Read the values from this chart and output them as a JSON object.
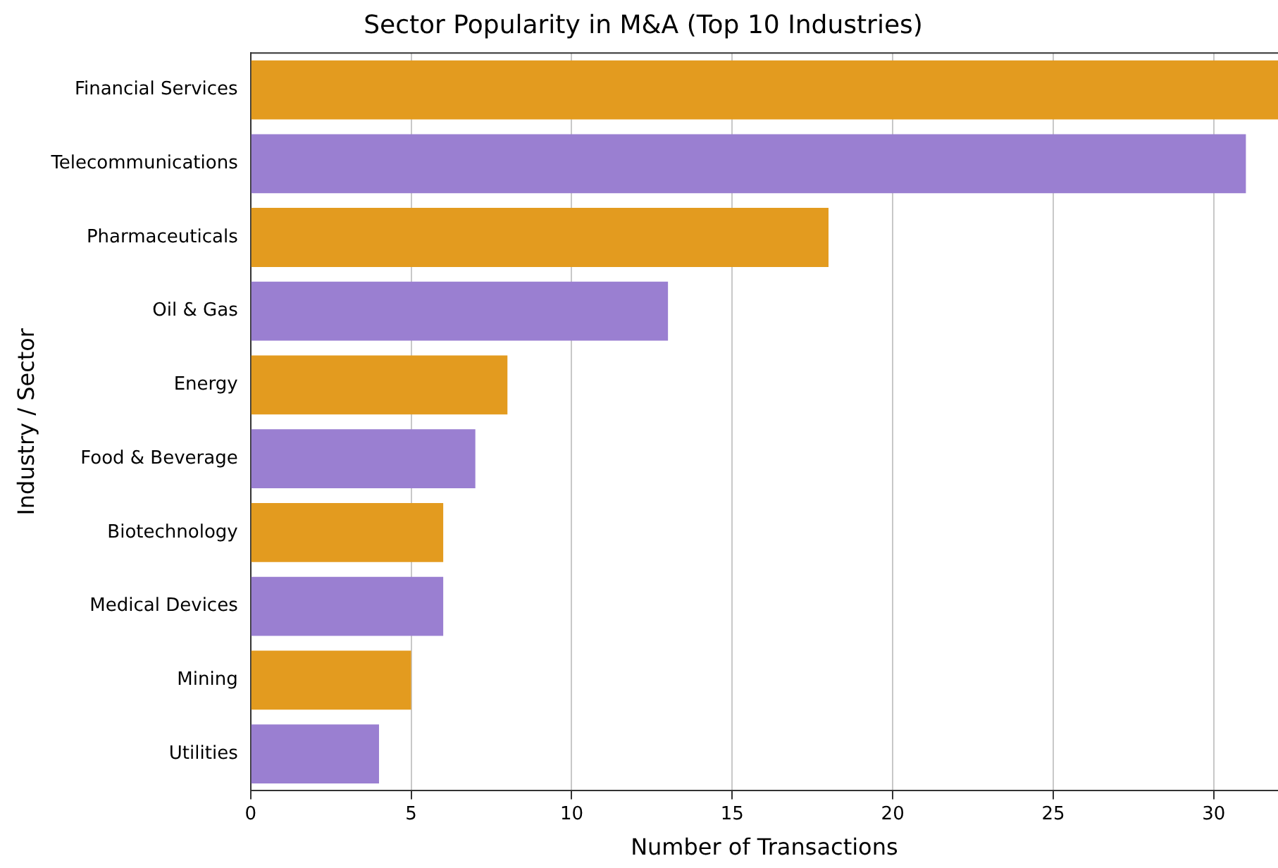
{
  "chart_data": {
    "type": "bar",
    "orientation": "horizontal",
    "title": "Sector Popularity in M&A (Top 10 Industries)",
    "xlabel": "Number of Transactions",
    "ylabel": "Industry / Sector",
    "categories": [
      "Financial Services",
      "Telecommunications",
      "Pharmaceuticals",
      "Oil & Gas",
      "Energy",
      "Food & Beverage",
      "Biotechnology",
      "Medical Devices",
      "Mining",
      "Utilities"
    ],
    "values": [
      32,
      31,
      18,
      13,
      8,
      7,
      6,
      6,
      5,
      4
    ],
    "colors": [
      "#e39b1f",
      "#9a7fd1",
      "#e39b1f",
      "#9a7fd1",
      "#e39b1f",
      "#9a7fd1",
      "#e39b1f",
      "#9a7fd1",
      "#e39b1f",
      "#9a7fd1"
    ],
    "xlim": [
      0,
      32
    ],
    "xticks": [
      0,
      5,
      10,
      15,
      20,
      25,
      30
    ],
    "grid": "x",
    "legend": false
  }
}
